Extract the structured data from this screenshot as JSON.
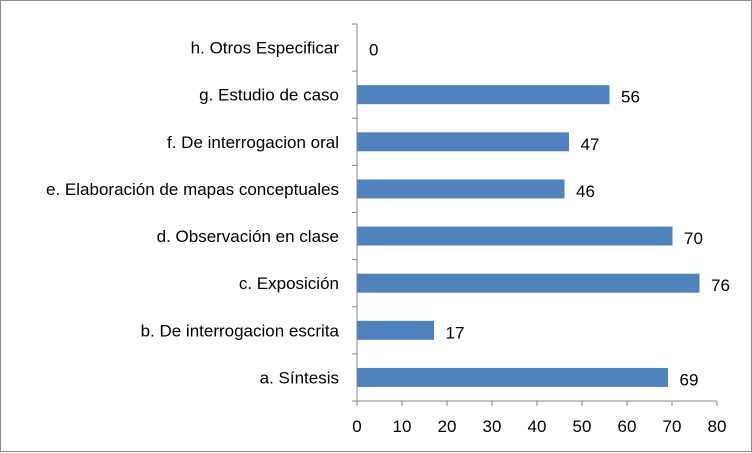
{
  "chart_data": {
    "type": "bar",
    "orientation": "horizontal",
    "title": "",
    "xlabel": "",
    "ylabel": "",
    "categories": [
      "a.  Síntesis",
      "b. De interrogacion escrita",
      "c.  Exposición",
      "d. Observación en clase",
      "e. Elaboración de mapas conceptuales",
      "f.  De interrogacion oral",
      "g.  Estudio de caso",
      "h. Otros Especificar"
    ],
    "values": [
      69,
      17,
      76,
      70,
      46,
      47,
      56,
      0
    ],
    "value_labels": [
      "69",
      "17",
      "76",
      "70",
      "46",
      "47",
      "56",
      "0"
    ],
    "xlim": [
      0,
      80
    ],
    "x_ticks": [
      0,
      10,
      20,
      30,
      40,
      50,
      60,
      70,
      80
    ],
    "x_tick_labels": [
      "0",
      "10",
      "20",
      "30",
      "40",
      "50",
      "60",
      "70",
      "80"
    ],
    "bar_color": "#4f81bd",
    "legend": "none",
    "grid": false
  }
}
